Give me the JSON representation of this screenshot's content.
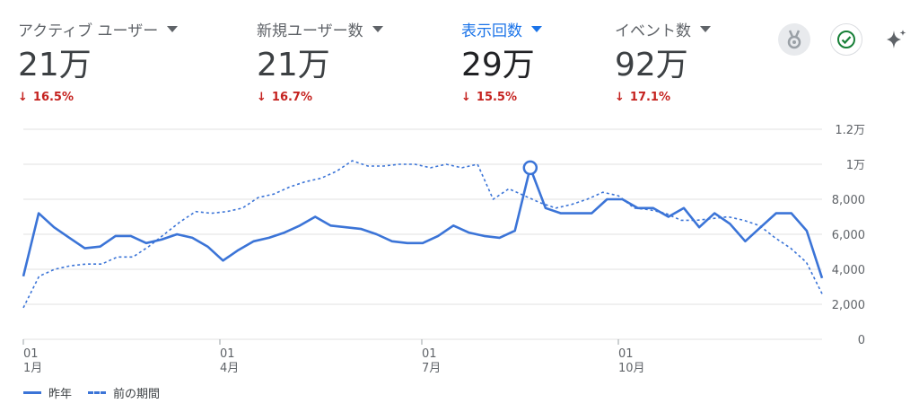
{
  "metrics": [
    {
      "label": "アクティブ ユーザー",
      "value": "21万",
      "delta": "16.5%",
      "active": false
    },
    {
      "label": "新規ユーザー数",
      "value": "21万",
      "delta": "16.7%",
      "active": false
    },
    {
      "label": "表示回数",
      "value": "29万",
      "delta": "15.5%",
      "active": true
    },
    {
      "label": "イベント数",
      "value": "92万",
      "delta": "17.1%",
      "active": false
    }
  ],
  "colors": {
    "series": "#3b74d7",
    "active_label": "#1a73e8",
    "negative": "#c5221f",
    "grid": "#e0e0e0"
  },
  "icons": {
    "insights": "medal-icon",
    "check": "check-circle-icon",
    "sparkle": "sparkle-icon"
  },
  "chart_data": {
    "type": "line",
    "y_ticks": [
      "0",
      "2,000",
      "4,000",
      "6,000",
      "8,000",
      "1万",
      "1.2万"
    ],
    "x_ticks": [
      {
        "day": "01",
        "month": "1月"
      },
      {
        "day": "01",
        "month": "4月"
      },
      {
        "day": "01",
        "month": "7月"
      },
      {
        "day": "01",
        "month": "10月"
      }
    ],
    "ylim": [
      0,
      12000
    ],
    "series": [
      {
        "name": "昨年",
        "style": "solid",
        "values": [
          3600,
          7200,
          6400,
          5800,
          5200,
          5300,
          5900,
          5900,
          5500,
          5700,
          6000,
          5800,
          5300,
          4500,
          5100,
          5600,
          5800,
          6100,
          6500,
          7000,
          6500,
          6400,
          6300,
          6000,
          5600,
          5500,
          5500,
          5900,
          6500,
          6100,
          5900,
          5800,
          6200,
          9800,
          7500,
          7200,
          7200,
          7200,
          8000,
          8000,
          7500,
          7500,
          7000,
          7500,
          6400,
          7200,
          6600,
          5600,
          6400,
          7200,
          7200,
          6200,
          3500
        ]
      },
      {
        "name": "前の期間",
        "style": "dashed",
        "values": [
          1800,
          3600,
          4000,
          4200,
          4300,
          4300,
          4700,
          4700,
          5300,
          6000,
          6700,
          7300,
          7200,
          7300,
          7500,
          8100,
          8300,
          8700,
          9000,
          9200,
          9600,
          10200,
          9900,
          9900,
          10000,
          10000,
          9800,
          10000,
          9800,
          10000,
          8000,
          8600,
          8200,
          7800,
          7500,
          7700,
          8000,
          8400,
          8200,
          7500,
          7400,
          7200,
          6800,
          6800,
          6900,
          7000,
          6800,
          6500,
          5800,
          5200,
          4400,
          2600
        ]
      }
    ],
    "highlight": {
      "series": 0,
      "index": 33,
      "value": 9800
    },
    "legend": "bottom-left"
  }
}
